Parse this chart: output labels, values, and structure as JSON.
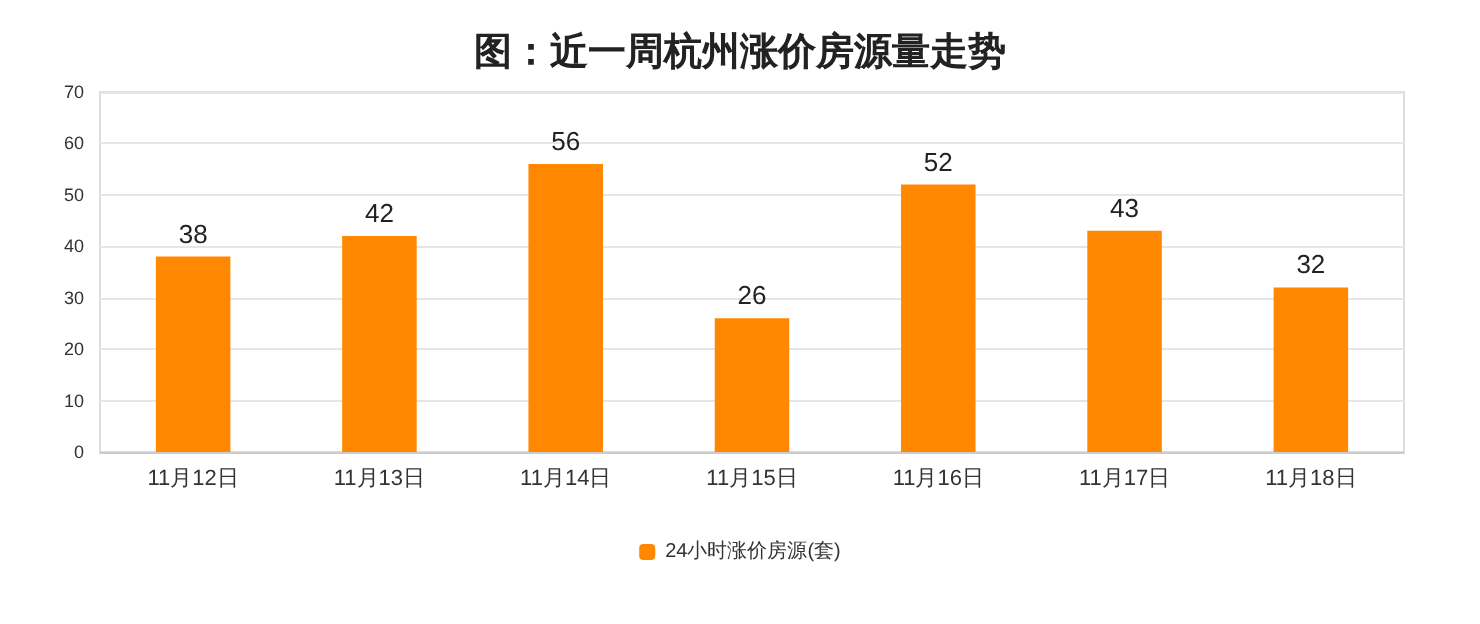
{
  "chart_data": {
    "type": "bar",
    "title": "图：近一周杭州涨价房源量走势",
    "categories": [
      "11月12日",
      "11月13日",
      "11月14日",
      "11月15日",
      "11月16日",
      "11月17日",
      "11月18日"
    ],
    "series": [
      {
        "name": "24小时涨价房源(套)",
        "color": "#ff8800",
        "values": [
          38,
          42,
          56,
          26,
          52,
          43,
          32
        ]
      }
    ],
    "ylim": [
      0,
      70
    ],
    "yticks": [
      0,
      10,
      20,
      30,
      40,
      50,
      60,
      70
    ],
    "grid": "y",
    "legend": "bottom",
    "data_labels": true
  }
}
